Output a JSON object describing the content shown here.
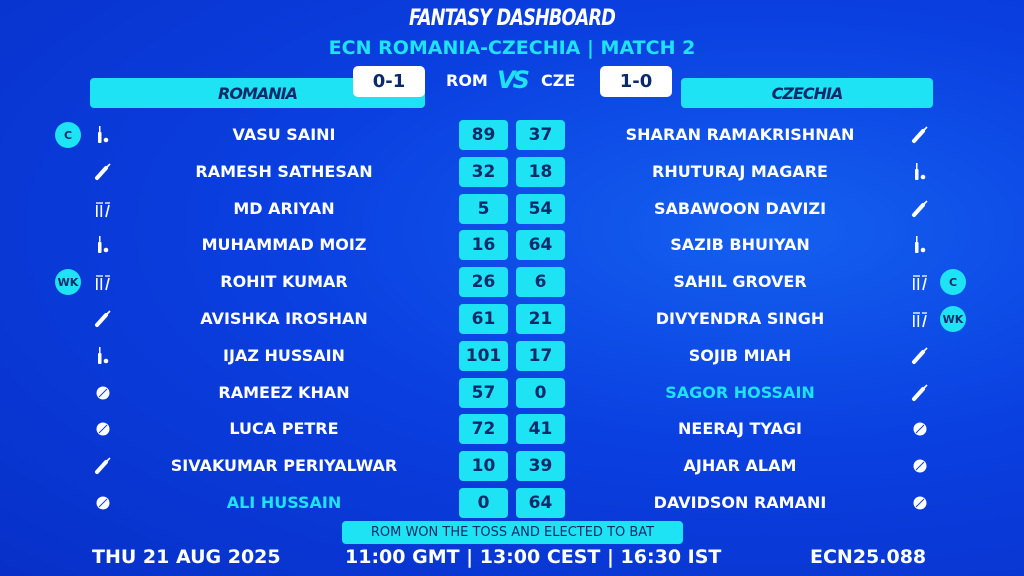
{
  "header": {
    "title": "FANTASY DASHBOARD",
    "subtitle": "ECN ROMANIA-CZECHIA | MATCH 2"
  },
  "teams": {
    "home": {
      "name": "ROMANIA",
      "abbr": "ROM",
      "record": "0-1"
    },
    "away": {
      "name": "CZECHIA",
      "abbr": "CZE",
      "record": "1-0"
    },
    "vs": "VS"
  },
  "colors": {
    "accent": "#1ee3f5",
    "background": "#0a3fe0",
    "dark_text": "#0b2a6b"
  },
  "role_icons": {
    "allrounder": "bat-ball-icon",
    "batter": "bat-icon",
    "wicketkeeper": "stumps-icon",
    "bowler": "ball-icon"
  },
  "home_players": [
    {
      "name": "VASU SAINI",
      "points": "89",
      "role": "allrounder",
      "badge": "C"
    },
    {
      "name": "RAMESH SATHESAN",
      "points": "32",
      "role": "batter"
    },
    {
      "name": "MD ARIYAN",
      "points": "5",
      "role": "wicketkeeper"
    },
    {
      "name": "MUHAMMAD MOIZ",
      "points": "16",
      "role": "allrounder"
    },
    {
      "name": "ROHIT KUMAR",
      "points": "26",
      "role": "wicketkeeper",
      "badge": "WK"
    },
    {
      "name": "AVISHKA IROSHAN",
      "points": "61",
      "role": "batter"
    },
    {
      "name": "IJAZ HUSSAIN",
      "points": "101",
      "role": "allrounder"
    },
    {
      "name": "RAMEEZ KHAN",
      "points": "57",
      "role": "bowler"
    },
    {
      "name": "LUCA PETRE",
      "points": "72",
      "role": "bowler"
    },
    {
      "name": "SIVAKUMAR PERIYALWAR",
      "points": "10",
      "role": "batter"
    },
    {
      "name": "ALI HUSSAIN",
      "points": "0",
      "role": "bowler",
      "highlight": true
    }
  ],
  "away_players": [
    {
      "name": "SHARAN RAMAKRISHNAN",
      "points": "37",
      "role": "batter"
    },
    {
      "name": "RHUTURAJ MAGARE",
      "points": "18",
      "role": "allrounder"
    },
    {
      "name": "SABAWOON DAVIZI",
      "points": "54",
      "role": "batter"
    },
    {
      "name": "SAZIB BHUIYAN",
      "points": "64",
      "role": "allrounder"
    },
    {
      "name": "SAHIL GROVER",
      "points": "6",
      "role": "wicketkeeper",
      "badge": "C"
    },
    {
      "name": "DIVYENDRA SINGH",
      "points": "21",
      "role": "wicketkeeper",
      "badge": "WK"
    },
    {
      "name": "SOJIB MIAH",
      "points": "17",
      "role": "batter"
    },
    {
      "name": "SAGOR HOSSAIN",
      "points": "0",
      "role": "batter",
      "highlight": true
    },
    {
      "name": "NEERAJ TYAGI",
      "points": "41",
      "role": "bowler"
    },
    {
      "name": "AJHAR ALAM",
      "points": "39",
      "role": "bowler"
    },
    {
      "name": "DAVIDSON RAMANI",
      "points": "64",
      "role": "bowler"
    }
  ],
  "footer": {
    "toss": "ROM WON THE TOSS AND ELECTED TO BAT",
    "date": "THU 21 AUG 2025",
    "times": "11:00 GMT | 13:00 CEST | 16:30 IST",
    "code": "ECN25.088"
  }
}
